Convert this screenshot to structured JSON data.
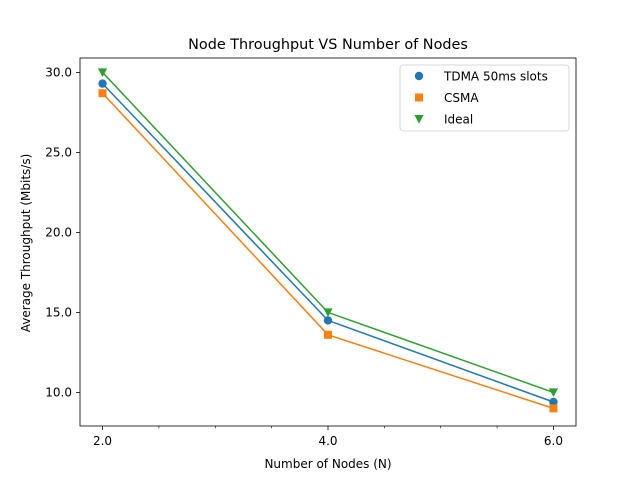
{
  "chart_data": {
    "type": "line",
    "title": "Node Throughput VS Number of Nodes",
    "xlabel": "Number of Nodes (N)",
    "ylabel": "Average Throughput (Mbits/s)",
    "x": [
      2,
      4,
      6
    ],
    "xlim": [
      1.8,
      6.2
    ],
    "ylim": [
      7.9,
      30.9
    ],
    "x_ticks": [
      2,
      4,
      6
    ],
    "x_tick_labels": [
      "2.0",
      "4.0",
      "6.0"
    ],
    "x_minor_ticks": [
      2.5,
      3.0,
      3.5,
      4.5,
      5.0,
      5.5
    ],
    "y_ticks": [
      10,
      15,
      20,
      25,
      30
    ],
    "y_tick_labels": [
      "10.0",
      "15.0",
      "20.0",
      "25.0",
      "30.0"
    ],
    "grid": false,
    "legend_position": "top-right",
    "series": [
      {
        "name": "TDMA 50ms slots",
        "values": [
          29.3,
          14.5,
          9.4
        ],
        "color": "#1f77b4",
        "marker": "circle"
      },
      {
        "name": "CSMA",
        "values": [
          28.7,
          13.6,
          9.0
        ],
        "color": "#ff7f0e",
        "marker": "square"
      },
      {
        "name": "Ideal",
        "values": [
          30.0,
          15.0,
          10.0
        ],
        "color": "#2ca02c",
        "marker": "triangle-down"
      }
    ]
  }
}
